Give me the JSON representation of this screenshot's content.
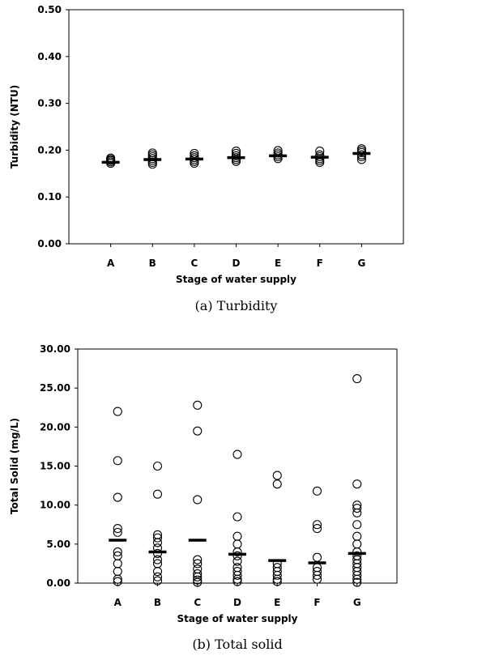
{
  "chart_data": [
    {
      "type": "scatter",
      "caption": "(a)  Turbidity",
      "xlabel": "Stage of water supply",
      "ylabel": "Turbidity (NTU)",
      "categories": [
        "A",
        "B",
        "C",
        "D",
        "E",
        "F",
        "G"
      ],
      "ylim": [
        0,
        0.5
      ],
      "yticks": [
        "0.00",
        "0.10",
        "0.20",
        "0.30",
        "0.40",
        "0.50"
      ],
      "points": [
        [
          0.172,
          0.175,
          0.178,
          0.18,
          0.183
        ],
        [
          0.17,
          0.174,
          0.178,
          0.182,
          0.186,
          0.19,
          0.194
        ],
        [
          0.172,
          0.176,
          0.18,
          0.184,
          0.188,
          0.193
        ],
        [
          0.176,
          0.18,
          0.184,
          0.188,
          0.193,
          0.198
        ],
        [
          0.182,
          0.186,
          0.19,
          0.194,
          0.199
        ],
        [
          0.174,
          0.178,
          0.182,
          0.186,
          0.19,
          0.198
        ],
        [
          0.18,
          0.186,
          0.19,
          0.195,
          0.199,
          0.203
        ]
      ],
      "means": [
        0.174,
        0.18,
        0.181,
        0.184,
        0.188,
        0.185,
        0.193
      ]
    },
    {
      "type": "scatter",
      "caption": "(b)  Total solid",
      "xlabel": "Stage of water supply",
      "ylabel": "Total Solid (mg/L)",
      "categories": [
        "A",
        "B",
        "C",
        "D",
        "E",
        "F",
        "G"
      ],
      "ylim": [
        0,
        30
      ],
      "yticks": [
        "0.00",
        "5.00",
        "10.00",
        "15.00",
        "20.00",
        "25.00",
        "30.00"
      ],
      "points": [
        [
          0.2,
          0.5,
          1.5,
          2.5,
          3.5,
          4.0,
          6.5,
          7.0,
          11.0,
          15.7,
          22.0
        ],
        [
          0.3,
          0.8,
          1.5,
          2.5,
          3.0,
          3.8,
          4.5,
          5.2,
          5.8,
          6.2,
          11.4,
          15.0
        ],
        [
          0.1,
          0.4,
          0.8,
          1.2,
          1.8,
          2.5,
          3.0,
          10.7,
          19.5,
          22.8
        ],
        [
          0.2,
          0.5,
          1.0,
          1.5,
          2.0,
          2.8,
          3.5,
          4.0,
          5.0,
          6.0,
          8.5,
          16.5
        ],
        [
          0.2,
          0.5,
          1.0,
          1.5,
          2.0,
          2.5,
          12.7,
          13.8
        ],
        [
          0.5,
          1.0,
          1.5,
          2.0,
          3.3,
          7.0,
          7.5,
          11.8
        ],
        [
          0.1,
          0.5,
          1.0,
          1.5,
          2.0,
          2.5,
          3.0,
          3.5,
          4.0,
          5.0,
          6.0,
          7.5,
          9.0,
          9.6,
          10.0,
          12.7,
          26.2
        ]
      ],
      "means": [
        5.5,
        4.0,
        5.5,
        3.7,
        2.9,
        2.6,
        3.8
      ]
    }
  ]
}
